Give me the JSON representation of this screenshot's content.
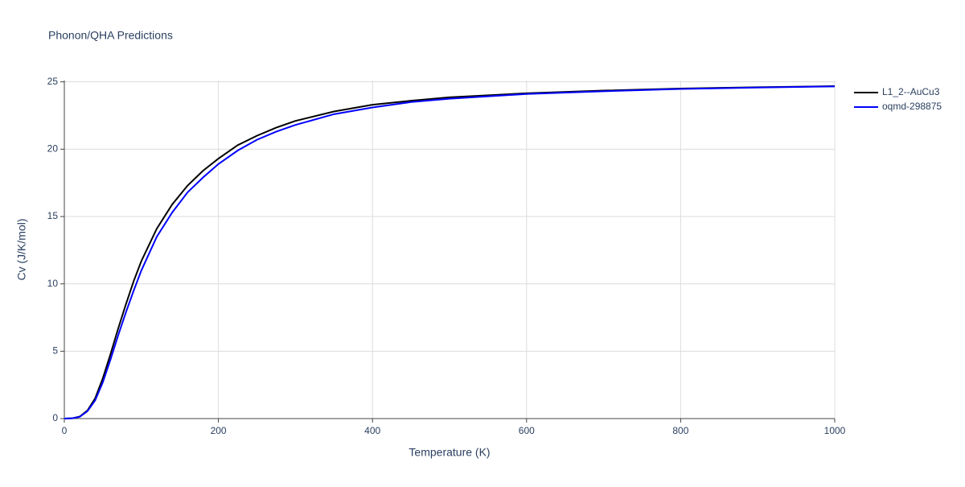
{
  "chart_data": {
    "type": "line",
    "title": "Phonon/QHA Predictions",
    "x_label": "Temperature (K)",
    "y_label": "Cv (J/K/mol)",
    "x": [
      0,
      10,
      20,
      30,
      40,
      50,
      60,
      70,
      80,
      90,
      100,
      120,
      140,
      160,
      180,
      200,
      225,
      250,
      275,
      300,
      350,
      400,
      450,
      500,
      600,
      700,
      800,
      900,
      1000
    ],
    "series": [
      {
        "name": "L1_2--AuCu3",
        "color": "#000000",
        "values": [
          0,
          0.02,
          0.15,
          0.6,
          1.5,
          3.0,
          4.8,
          6.7,
          8.5,
          10.2,
          11.7,
          14.1,
          15.9,
          17.3,
          18.4,
          19.3,
          20.3,
          21.0,
          21.6,
          22.1,
          22.8,
          23.3,
          23.6,
          23.85,
          24.15,
          24.35,
          24.5,
          24.6,
          24.68
        ]
      },
      {
        "name": "oqmd-298875",
        "color": "#0000ff",
        "values": [
          0,
          0.02,
          0.13,
          0.55,
          1.35,
          2.7,
          4.4,
          6.2,
          7.9,
          9.5,
          11.0,
          13.5,
          15.3,
          16.8,
          17.9,
          18.9,
          19.9,
          20.7,
          21.3,
          21.8,
          22.6,
          23.1,
          23.5,
          23.75,
          24.1,
          24.3,
          24.47,
          24.58,
          24.66
        ]
      }
    ],
    "xlim": [
      0,
      1000
    ],
    "xticks": [
      0,
      200,
      400,
      600,
      800,
      1000
    ],
    "ylim": [
      0,
      25.1
    ],
    "yticks": [
      0,
      5,
      10,
      15,
      20,
      25
    ],
    "grid": true
  }
}
